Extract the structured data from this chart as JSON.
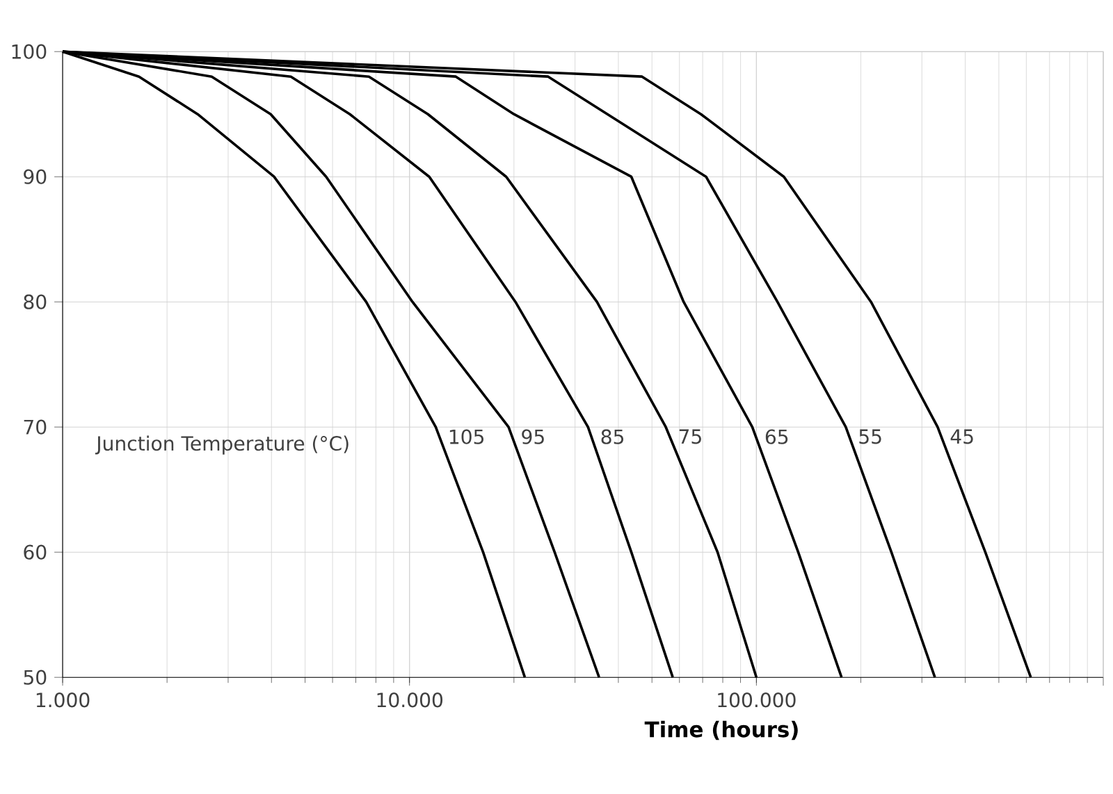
{
  "chart_data": {
    "type": "line",
    "xlabel": "Time (hours)",
    "log": "x",
    "grid": true,
    "legend": false,
    "marker": "none",
    "line_style": "solid",
    "xlim": [
      1000,
      1000000
    ],
    "xticks": [
      {
        "value": 1000,
        "label": "1.000"
      },
      {
        "value": 10000,
        "label": "10.000"
      },
      {
        "value": 100000,
        "label": "100.000"
      },
      {
        "value": 1000000,
        "label": null
      }
    ],
    "ylim": [
      50,
      100
    ],
    "yticks": [
      50,
      60,
      70,
      80,
      90,
      100
    ],
    "annotations": [
      "Junction Temperature (°C)"
    ],
    "series": [
      {
        "name": "105",
        "color": "#000000",
        "x": [
          1000,
          1660,
          2450,
          4070,
          7500,
          11900,
          16300,
          21500
        ],
        "values": [
          100,
          98,
          95,
          90,
          80,
          70,
          60,
          50
        ]
      },
      {
        "name": "95",
        "color": "#000000",
        "x": [
          1000,
          2690,
          3980,
          5750,
          10200,
          19300,
          26200,
          35200
        ],
        "values": [
          100,
          98,
          95,
          90,
          80,
          70,
          60,
          50
        ]
      },
      {
        "name": "85",
        "color": "#000000",
        "x": [
          1000,
          4550,
          6730,
          11400,
          20200,
          32700,
          43600,
          57400
        ],
        "values": [
          100,
          98,
          95,
          90,
          80,
          70,
          60,
          50
        ]
      },
      {
        "name": "75",
        "color": "#000000",
        "x": [
          1000,
          7640,
          11300,
          19000,
          34700,
          54800,
          77300,
          100000
        ],
        "values": [
          100,
          98,
          95,
          90,
          80,
          70,
          60,
          50
        ]
      },
      {
        "name": "65",
        "color": "#000000",
        "x": [
          1000,
          13600,
          20000,
          43600,
          61700,
          97300,
          132000,
          176000
        ],
        "values": [
          100,
          98,
          95,
          90,
          80,
          70,
          60,
          50
        ]
      },
      {
        "name": "55",
        "color": "#000000",
        "x": [
          1000,
          25100,
          37200,
          71600,
          115000,
          181000,
          245000,
          327000
        ],
        "values": [
          100,
          98,
          95,
          90,
          80,
          70,
          60,
          50
        ]
      },
      {
        "name": "45",
        "color": "#000000",
        "x": [
          1000,
          46800,
          69200,
          120000,
          214000,
          333000,
          457000,
          618000
        ],
        "values": [
          100,
          98,
          95,
          90,
          80,
          70,
          60,
          50
        ]
      }
    ]
  }
}
